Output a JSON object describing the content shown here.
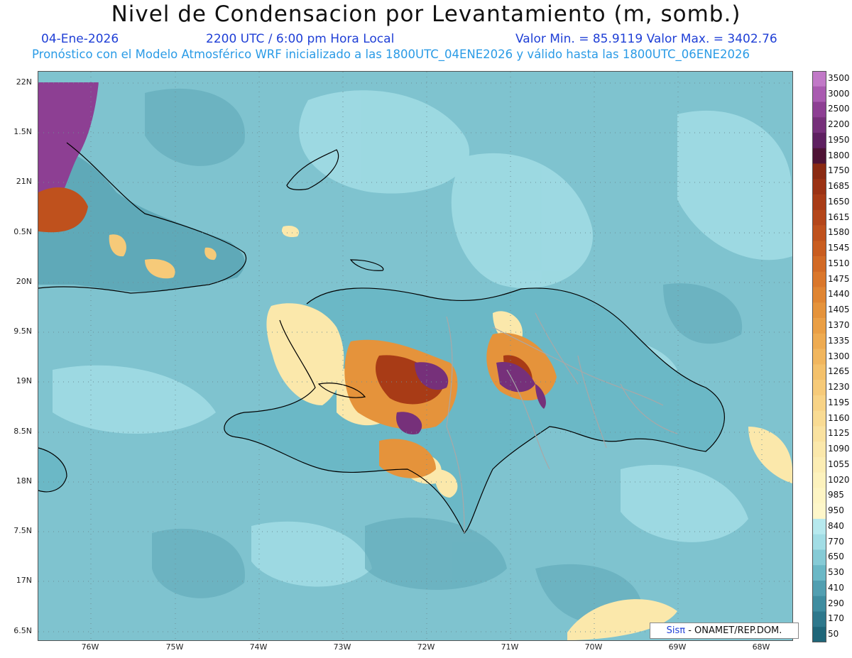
{
  "title": "Nivel de Condensacion por Levantamiento (m, somb.)",
  "date": "04-Ene-2026",
  "time": "2200 UTC / 6:00 pm Hora Local",
  "min_max": "Valor Min. = 85.9119  Valor Max. = 3402.76",
  "forecast_note": "Pronóstico con el Modelo Atmosférico WRF inicializado a las 1800UTC_04ENE2026 y válido hasta las  1800UTC_06ENE2026",
  "lat_labels": [
    "22N",
    "1.5N",
    "21N",
    "0.5N",
    "20N",
    "9.5N",
    "19N",
    "8.5N",
    "18N",
    "7.5N",
    "17N",
    "6.5N"
  ],
  "lon_labels": [
    "76W",
    "75W",
    "74W",
    "73W",
    "72W",
    "71W",
    "70W",
    "69W",
    "68W"
  ],
  "colorbar": {
    "values": [
      "3500",
      "3000",
      "2500",
      "2200",
      "1950",
      "1800",
      "1750",
      "1685",
      "1650",
      "1615",
      "1580",
      "1545",
      "1510",
      "1475",
      "1440",
      "1405",
      "1370",
      "1335",
      "1300",
      "1265",
      "1230",
      "1195",
      "1160",
      "1125",
      "1090",
      "1055",
      "1020",
      "985",
      "950",
      "840",
      "770",
      "650",
      "530",
      "410",
      "290",
      "170",
      "50"
    ],
    "colors": [
      "#c179c7",
      "#a95bb0",
      "#8d3f93",
      "#76307a",
      "#5e2060",
      "#4e1335",
      "#8a2a12",
      "#9b3214",
      "#a83b16",
      "#b4461a",
      "#bf511d",
      "#c95d20",
      "#d26a25",
      "#da772b",
      "#e08532",
      "#e5933b",
      "#ea9f45",
      "#eeab51",
      "#f1b65e",
      "#f4c16b",
      "#f6ca79",
      "#f8d386",
      "#f9db93",
      "#fae2a0",
      "#fbe8ab",
      "#fcedb4",
      "#fdf2bd",
      "#fef5c4",
      "#fef7ca",
      "#b7e9ee",
      "#a2dde5",
      "#86cbd6",
      "#6bb8c6",
      "#529fb1",
      "#3f8da0",
      "#2e788c",
      "#1f6679"
    ]
  },
  "credit": {
    "sis": "Sisπ",
    "rest": " - ONAMET/REP.DOM."
  },
  "colors": {
    "ocean": "#7fc3cf",
    "ocean_light": "#a2dde5",
    "ocean_dark": "#5fa9b8",
    "title_blue": "#1f3fd6",
    "note_blue": "#2a9be6"
  }
}
